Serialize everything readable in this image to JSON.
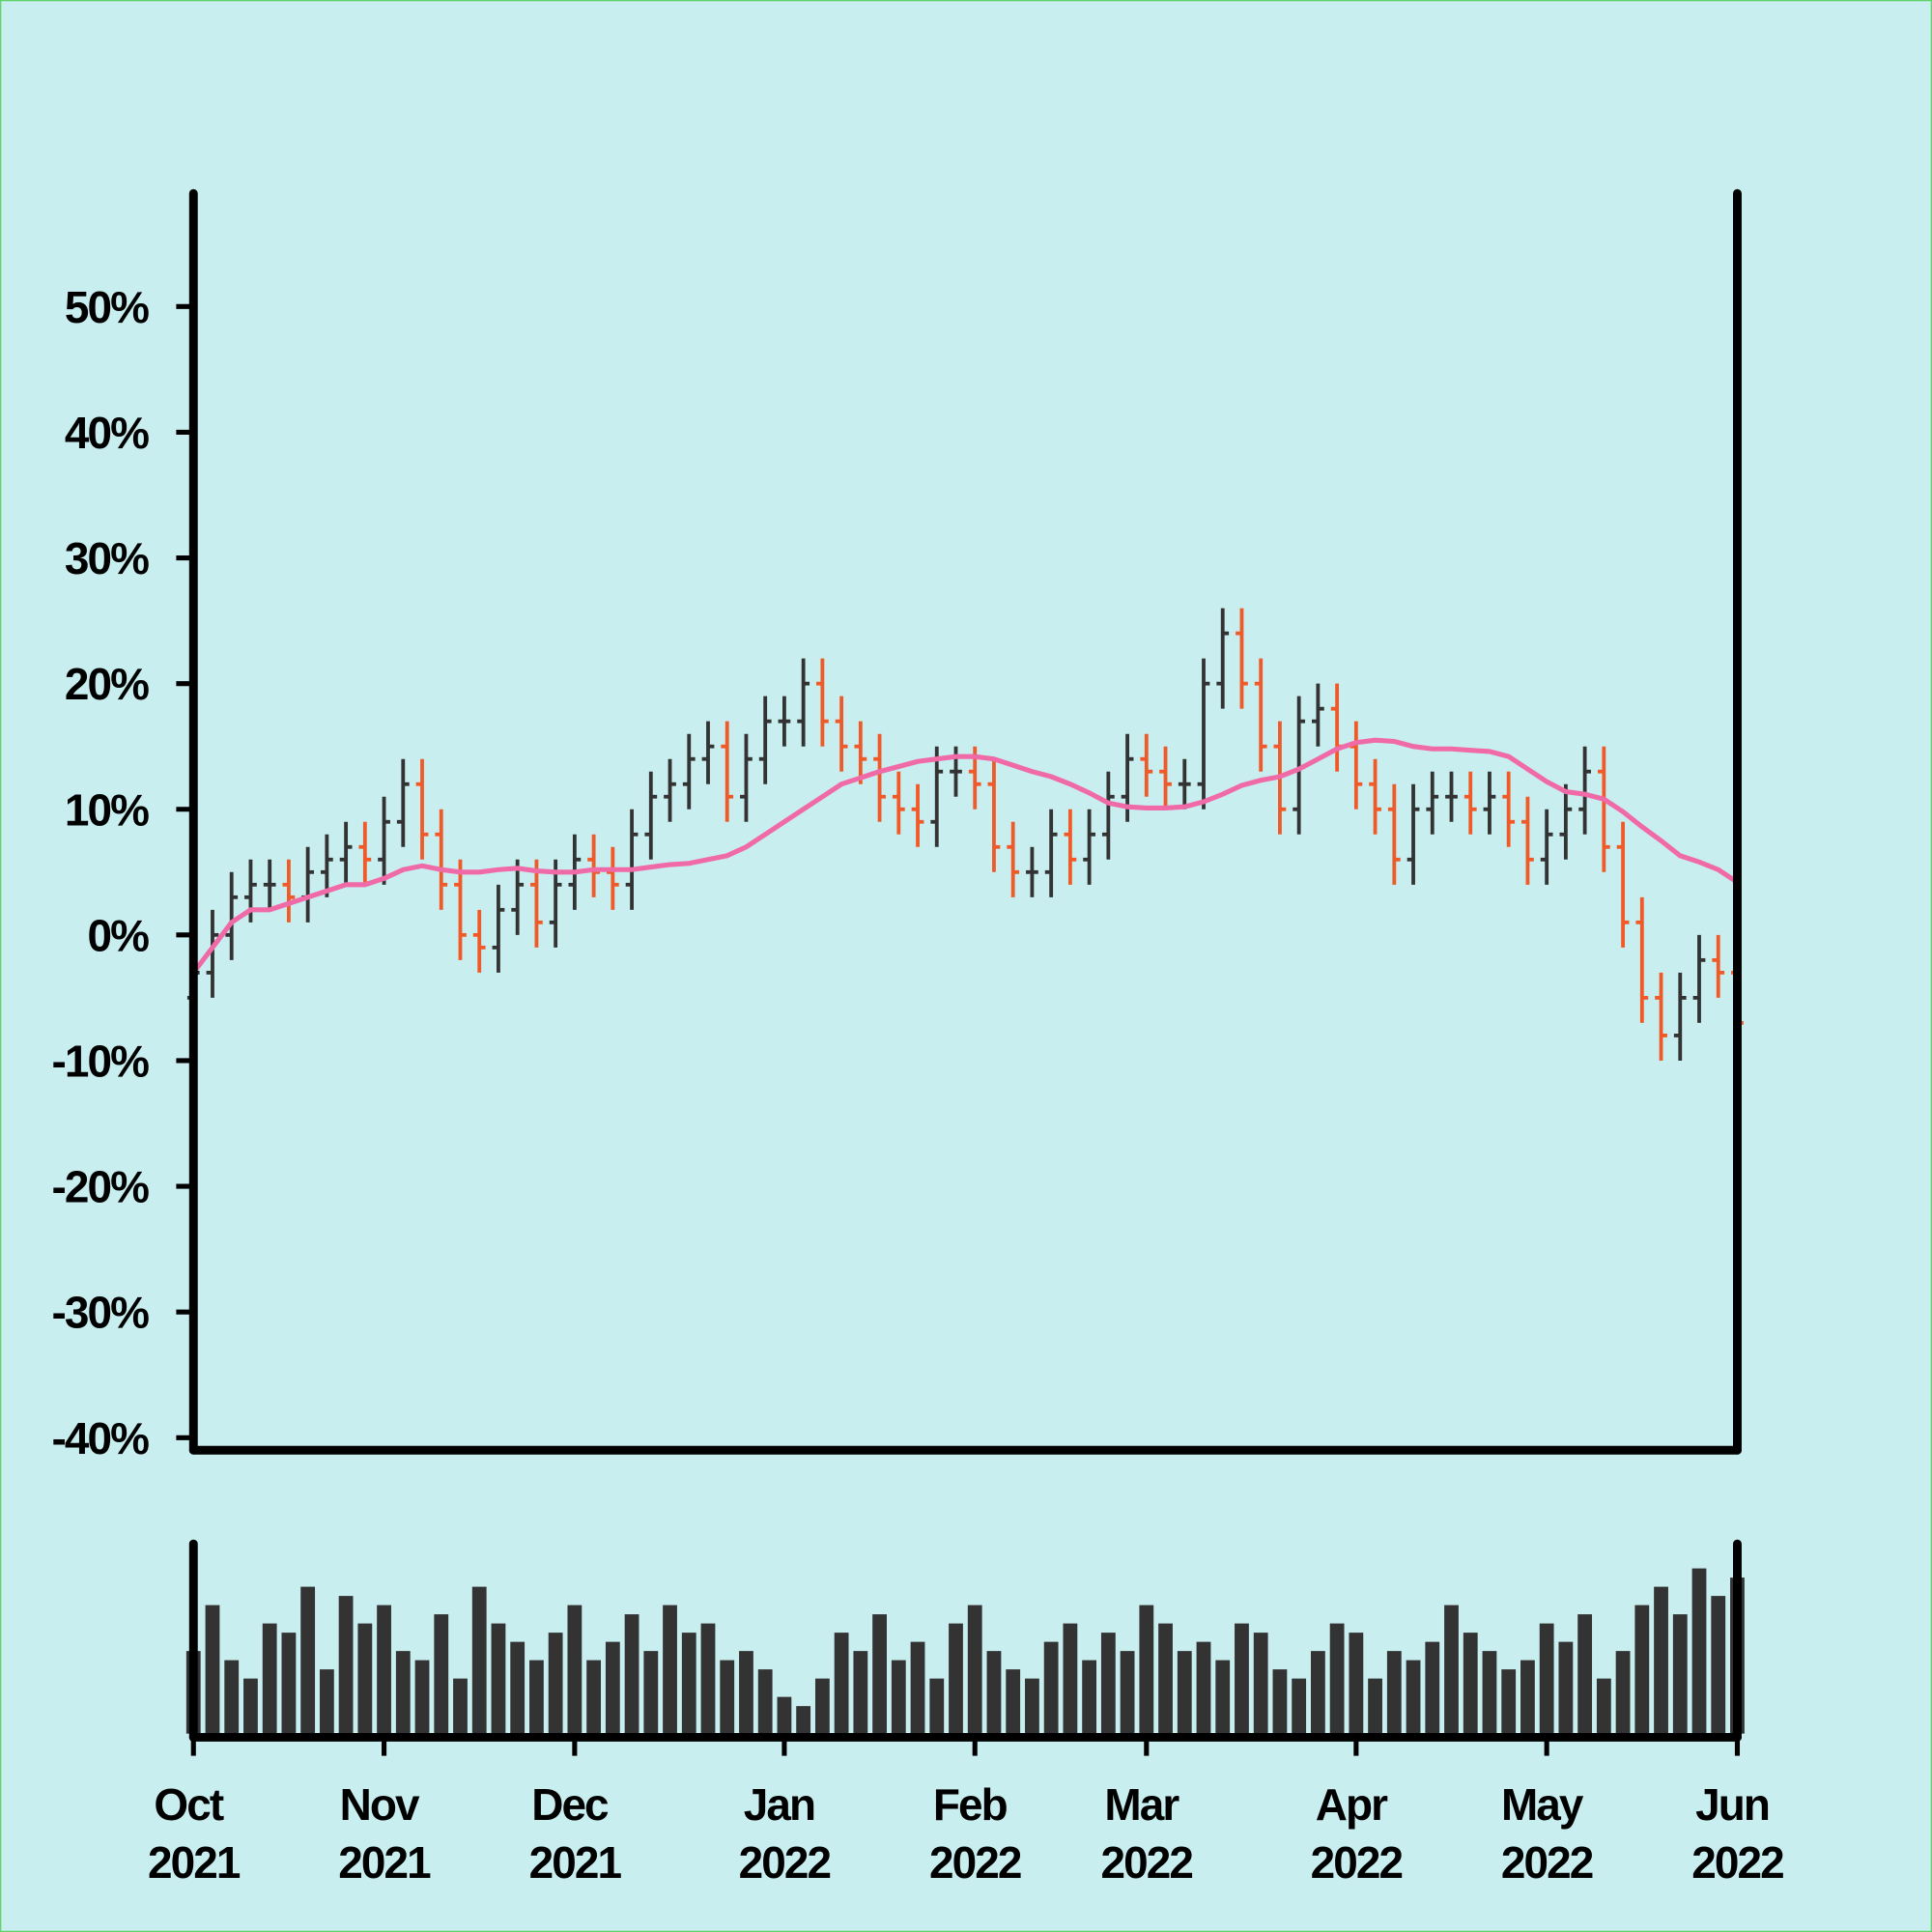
{
  "chart_data": {
    "type": "ohlc",
    "categories": [
      "Oct 2021",
      null,
      null,
      null,
      null,
      null,
      null,
      null,
      null,
      null,
      "Nov 2021",
      null,
      null,
      null,
      null,
      null,
      null,
      null,
      null,
      null,
      "Dec 2021",
      null,
      null,
      null,
      null,
      null,
      null,
      null,
      null,
      null,
      null,
      "Jan 2022",
      null,
      null,
      null,
      null,
      null,
      null,
      null,
      null,
      null,
      "Feb 2022",
      null,
      null,
      null,
      null,
      null,
      null,
      null,
      null,
      "Mar 2022",
      null,
      null,
      null,
      null,
      null,
      null,
      null,
      null,
      null,
      null,
      "Apr 2022",
      null,
      null,
      null,
      null,
      null,
      null,
      null,
      null,
      null,
      "May 2022",
      null,
      null,
      null,
      null,
      null,
      null,
      null,
      null,
      null,
      "Jun 2022"
    ],
    "open": [
      -5,
      -3,
      0,
      3,
      4,
      4,
      3,
      5,
      6,
      7,
      6,
      9,
      12,
      8,
      4,
      0,
      -1,
      2,
      4,
      1,
      4,
      6,
      5,
      4,
      8,
      11,
      12,
      14,
      15,
      11,
      14,
      17,
      17,
      20,
      17,
      15,
      14,
      11,
      10,
      9,
      13,
      13,
      12,
      7,
      5,
      5,
      8,
      6,
      8,
      11,
      14,
      13,
      12,
      12,
      20,
      24,
      20,
      15,
      10,
      17,
      18,
      15,
      12,
      10,
      6,
      10,
      11,
      11,
      10,
      11,
      9,
      6,
      8,
      10,
      13,
      7,
      1,
      -5,
      -8,
      -5,
      -2,
      -3
    ],
    "high": [
      -1,
      2,
      5,
      6,
      6,
      6,
      7,
      8,
      9,
      9,
      11,
      14,
      14,
      10,
      6,
      2,
      4,
      6,
      6,
      6,
      8,
      8,
      7,
      10,
      13,
      14,
      16,
      17,
      17,
      16,
      19,
      19,
      22,
      22,
      19,
      17,
      16,
      13,
      12,
      15,
      15,
      15,
      14,
      9,
      7,
      10,
      10,
      10,
      13,
      16,
      16,
      15,
      14,
      22,
      26,
      26,
      22,
      17,
      19,
      20,
      20,
      17,
      14,
      12,
      12,
      13,
      13,
      13,
      13,
      13,
      11,
      10,
      12,
      15,
      15,
      9,
      3,
      -3,
      -3,
      0,
      0,
      -1
    ],
    "low": [
      -7,
      -5,
      -2,
      1,
      2,
      1,
      1,
      3,
      4,
      4,
      4,
      7,
      6,
      2,
      -2,
      -3,
      -3,
      0,
      -1,
      -1,
      2,
      3,
      2,
      2,
      6,
      9,
      10,
      12,
      9,
      9,
      12,
      15,
      15,
      15,
      13,
      12,
      9,
      8,
      7,
      7,
      11,
      10,
      5,
      3,
      3,
      3,
      4,
      4,
      6,
      9,
      11,
      10,
      10,
      10,
      18,
      18,
      13,
      8,
      8,
      15,
      13,
      10,
      8,
      4,
      4,
      8,
      9,
      8,
      8,
      7,
      4,
      4,
      6,
      8,
      5,
      -1,
      -7,
      -10,
      -10,
      -7,
      -5,
      -9
    ],
    "close": [
      -3,
      0,
      3,
      4,
      4,
      3,
      5,
      6,
      7,
      6,
      9,
      12,
      8,
      4,
      0,
      -1,
      2,
      4,
      1,
      4,
      6,
      5,
      4,
      8,
      11,
      12,
      14,
      15,
      11,
      14,
      17,
      17,
      20,
      17,
      15,
      14,
      11,
      10,
      9,
      13,
      13,
      12,
      7,
      5,
      5,
      8,
      6,
      8,
      11,
      14,
      13,
      12,
      12,
      20,
      24,
      20,
      15,
      10,
      17,
      18,
      15,
      12,
      10,
      6,
      10,
      11,
      11,
      10,
      11,
      9,
      6,
      8,
      10,
      13,
      7,
      1,
      -5,
      -8,
      -5,
      -2,
      -3,
      -7
    ],
    "up_color": "#333333",
    "down_color": "#f05a28",
    "ma_values": [
      -3,
      -1,
      1,
      2,
      2,
      2.5,
      3,
      3.5,
      4,
      4,
      4.5,
      5.2,
      5.5,
      5.2,
      5,
      5,
      5.2,
      5.3,
      5.1,
      5,
      5,
      5.2,
      5.2,
      5.2,
      5.4,
      5.6,
      5.7,
      6,
      6.3,
      7,
      8,
      9,
      10,
      11,
      12,
      12.5,
      13,
      13.4,
      13.8,
      14,
      14.2,
      14.2,
      14,
      13.5,
      13,
      12.6,
      12,
      11.3,
      10.5,
      10.2,
      10.1,
      10.1,
      10.2,
      10.6,
      11.2,
      11.9,
      12.3,
      12.6,
      13.2,
      14,
      14.8,
      15.3,
      15.5,
      15.4,
      15,
      14.8,
      14.8,
      14.7,
      14.6,
      14.2,
      13.2,
      12.2,
      11.4,
      11.2,
      10.8,
      9.8,
      8.6,
      7.5,
      6.3,
      5.8,
      5.2,
      4.2
    ],
    "ma_color": "#f06aa8",
    "volume": [
      45,
      70,
      40,
      30,
      60,
      55,
      80,
      35,
      75,
      60,
      70,
      45,
      40,
      65,
      30,
      80,
      60,
      50,
      40,
      55,
      70,
      40,
      50,
      65,
      45,
      70,
      55,
      60,
      40,
      45,
      35,
      20,
      15,
      30,
      55,
      45,
      65,
      40,
      50,
      30,
      60,
      70,
      45,
      35,
      30,
      50,
      60,
      40,
      55,
      45,
      70,
      60,
      45,
      50,
      40,
      60,
      55,
      35,
      30,
      45,
      60,
      55,
      30,
      45,
      40,
      50,
      70,
      55,
      45,
      35,
      40,
      60,
      50,
      65,
      30,
      45,
      70,
      80,
      65,
      90,
      75,
      85
    ],
    "volume_color": "#333333",
    "volume_ylim": [
      0,
      100
    ],
    "ylim": [
      -41,
      59
    ],
    "yticks": [
      {
        "value": -40,
        "label": "-40%"
      },
      {
        "value": -30,
        "label": "-30%"
      },
      {
        "value": -20,
        "label": "-20%"
      },
      {
        "value": -10,
        "label": "-10%"
      },
      {
        "value": 0,
        "label": "0%"
      },
      {
        "value": 10,
        "label": "10%"
      },
      {
        "value": 20,
        "label": "20%"
      },
      {
        "value": 30,
        "label": "30%"
      },
      {
        "value": 40,
        "label": "40%"
      },
      {
        "value": 50,
        "label": "50%"
      }
    ]
  }
}
